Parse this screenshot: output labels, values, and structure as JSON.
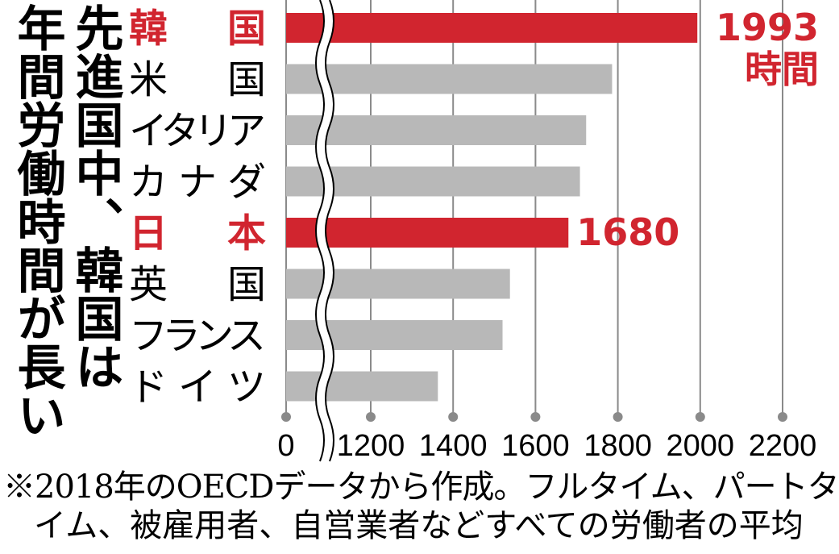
{
  "title_lines": [
    "先進国中、韓国は",
    "年間労働時間が長い"
  ],
  "footnote": [
    "※2018年のOECDデータから作成。フルタイム、パートタ",
    "イム、被雇用者、自営業者などすべての労働者の平均"
  ],
  "colors": {
    "highlight": "#d1252f",
    "bar": "#b8b8b8",
    "grid": "#8a8a8a",
    "text": "#000000"
  },
  "chart_data": {
    "type": "bar",
    "orientation": "horizontal",
    "axis_break": true,
    "categories": [
      "韓　国",
      "米　国",
      "イタリア",
      "カナダ",
      "日　本",
      "英　国",
      "フランス",
      "ドイツ"
    ],
    "values": [
      1993,
      1786,
      1723,
      1708,
      1680,
      1538,
      1520,
      1363
    ],
    "highlight": [
      true,
      false,
      false,
      false,
      true,
      false,
      false,
      false
    ],
    "data_labels": [
      {
        "index": 0,
        "lines": [
          "1993",
          "時間"
        ]
      },
      {
        "index": 4,
        "lines": [
          "1680"
        ]
      }
    ],
    "xticks": [
      0,
      1200,
      1400,
      1600,
      1800,
      2000,
      2200
    ],
    "xlim": [
      1000,
      2200
    ],
    "grid": true
  }
}
